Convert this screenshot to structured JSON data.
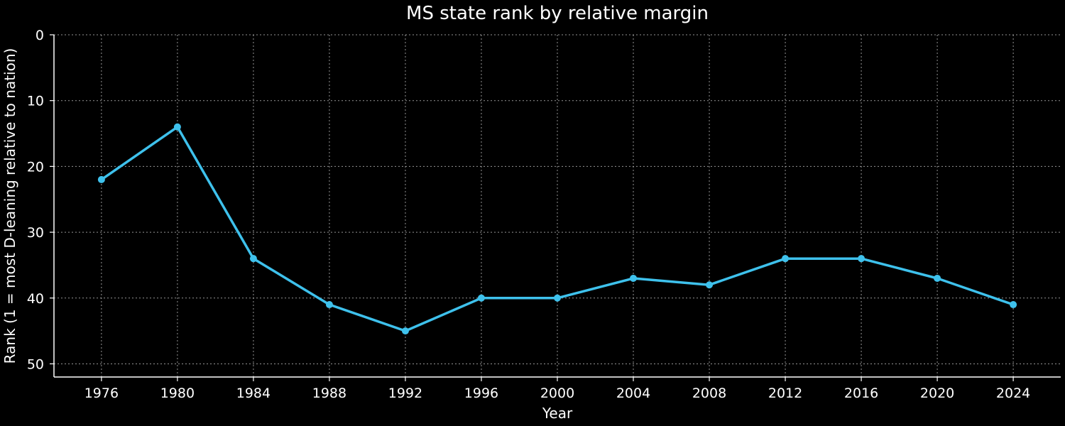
{
  "chart_data": {
    "type": "line",
    "title": "MS state rank by relative margin",
    "xlabel": "Year",
    "ylabel": "Rank (1 = most D-leaning relative to nation)",
    "x": [
      1976,
      1980,
      1984,
      1988,
      1992,
      1996,
      2000,
      2004,
      2008,
      2012,
      2016,
      2020,
      2024
    ],
    "y": [
      22,
      14,
      34,
      41,
      45,
      40,
      40,
      37,
      38,
      34,
      34,
      37,
      41
    ],
    "xticks": [
      "1976",
      "1980",
      "1984",
      "1988",
      "1992",
      "1996",
      "2000",
      "2004",
      "2008",
      "2012",
      "2016",
      "2020",
      "2024"
    ],
    "yticks": [
      "0",
      "10",
      "20",
      "30",
      "40",
      "50"
    ],
    "xlim": [
      1973.5,
      2026.5
    ],
    "ylim": [
      52,
      0
    ],
    "y_inverted": true,
    "grid": true,
    "line_color": "#3ec1ec",
    "background": "#000000"
  }
}
